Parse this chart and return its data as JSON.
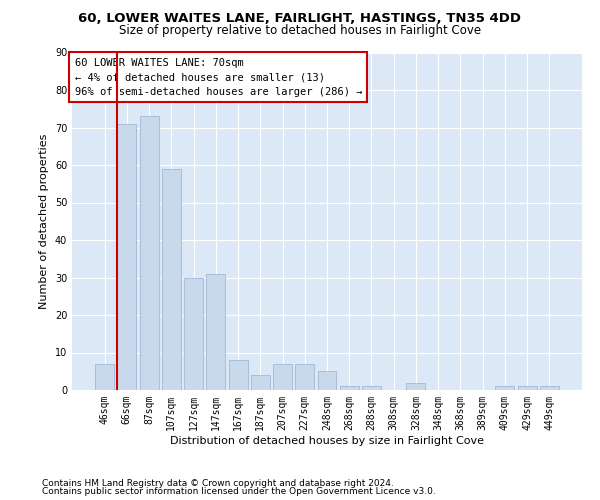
{
  "title1": "60, LOWER WAITES LANE, FAIRLIGHT, HASTINGS, TN35 4DD",
  "title2": "Size of property relative to detached houses in Fairlight Cove",
  "xlabel": "Distribution of detached houses by size in Fairlight Cove",
  "ylabel": "Number of detached properties",
  "categories": [
    "46sqm",
    "66sqm",
    "87sqm",
    "107sqm",
    "127sqm",
    "147sqm",
    "167sqm",
    "187sqm",
    "207sqm",
    "227sqm",
    "248sqm",
    "268sqm",
    "288sqm",
    "308sqm",
    "328sqm",
    "348sqm",
    "368sqm",
    "389sqm",
    "409sqm",
    "429sqm",
    "449sqm"
  ],
  "values": [
    7,
    71,
    73,
    59,
    30,
    31,
    8,
    4,
    7,
    7,
    5,
    1,
    1,
    0,
    2,
    0,
    0,
    0,
    1,
    1,
    1
  ],
  "bar_color": "#c9d9ec",
  "bar_edge_color": "#a0b8d8",
  "vline_x": 0.575,
  "vline_color": "#cc0000",
  "annotation_text": "60 LOWER WAITES LANE: 70sqm\n← 4% of detached houses are smaller (13)\n96% of semi-detached houses are larger (286) →",
  "annotation_box_color": "#ffffff",
  "annotation_box_edge": "#cc0000",
  "ylim": [
    0,
    90
  ],
  "yticks": [
    0,
    10,
    20,
    30,
    40,
    50,
    60,
    70,
    80,
    90
  ],
  "bg_color": "#dce8f5",
  "footer1": "Contains HM Land Registry data © Crown copyright and database right 2024.",
  "footer2": "Contains public sector information licensed under the Open Government Licence v3.0.",
  "title1_fontsize": 9.5,
  "title2_fontsize": 8.5,
  "xlabel_fontsize": 8,
  "ylabel_fontsize": 8,
  "tick_fontsize": 7,
  "annotation_fontsize": 7.5,
  "footer_fontsize": 6.5
}
